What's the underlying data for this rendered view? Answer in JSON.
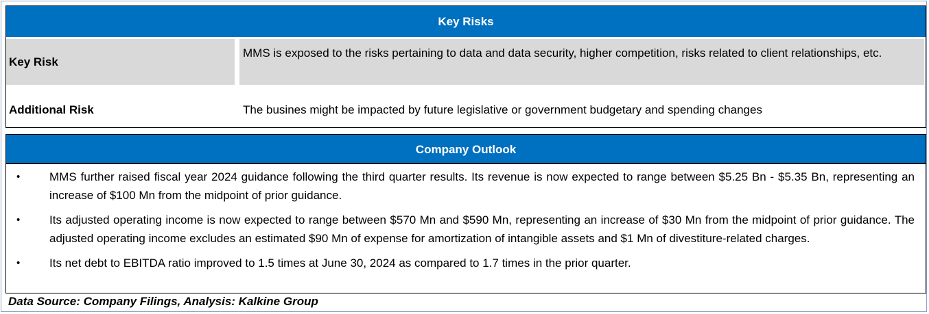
{
  "key_risks": {
    "title": "Key Risks",
    "rows": [
      {
        "label": "Key Risk",
        "value": "MMS is exposed to the risks pertaining to data and data security, higher competition, risks related to client relationships, etc."
      },
      {
        "label": "Additional Risk",
        "value": "The busines might be impacted by future legislative or government budgetary and spending changes"
      }
    ]
  },
  "company_outlook": {
    "title": "Company Outlook",
    "bullet_glyph": "•",
    "bullets": [
      "MMS further raised fiscal year 2024 guidance following the third quarter results. Its revenue is now expected to range between $5.25 Bn - $5.35 Bn, representing an increase of $100 Mn from the midpoint of prior guidance.",
      "Its adjusted operating income is now expected to range between $570 Mn and $590 Mn, representing an increase of $30 Mn from the midpoint of prior guidance. The adjusted operating income excludes an estimated $90 Mn of expense for amortization of intangible assets and $1 Mn of divestiture-related charges.",
      "Its net debt to EBITDA ratio improved to 1.5 times at June 30, 2024 as compared to 1.7 times in the prior quarter."
    ]
  },
  "source_note": "Data Source: Company Filings, Analysis: Kalkine Group",
  "colors": {
    "header_blue": "#0070c0",
    "row_gray": "#d9d9d9",
    "frame_border": "#8da3c6"
  }
}
